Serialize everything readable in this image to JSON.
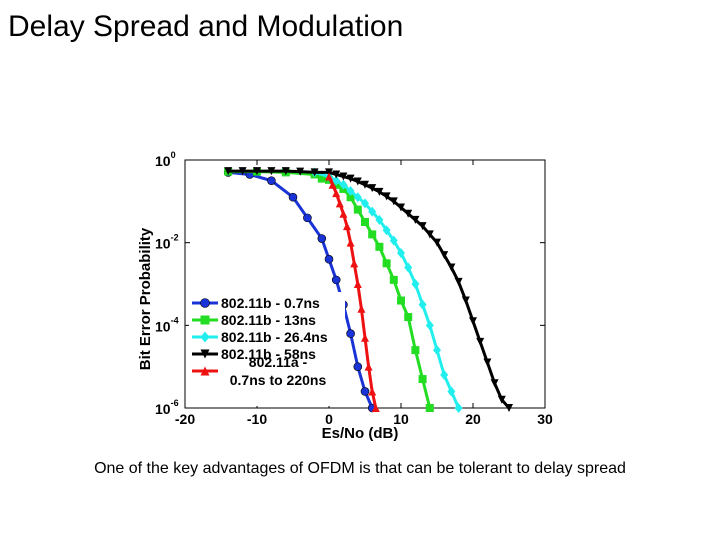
{
  "slide": {
    "title": "Delay Spread and Modulation",
    "caption": "One of the key advantages of OFDM is that can be tolerant to delay spread"
  },
  "chart_data": {
    "type": "line",
    "xlabel": "Es/No (dB)",
    "ylabel": "Bit Error Probability",
    "xlim": [
      -20,
      30
    ],
    "ylim_log10": [
      -6,
      0
    ],
    "y_scale": "log",
    "x_ticks": [
      {
        "value": -20,
        "label": "-20"
      },
      {
        "value": -10,
        "label": "-10"
      },
      {
        "value": 0,
        "label": "0"
      },
      {
        "value": 10,
        "label": "10"
      },
      {
        "value": 20,
        "label": "20"
      },
      {
        "value": 30,
        "label": "30"
      }
    ],
    "y_ticks": [
      {
        "exp": 0,
        "base": "10",
        "sup": "0"
      },
      {
        "exp": -2,
        "base": "10",
        "sup": "-2"
      },
      {
        "exp": -4,
        "base": "10",
        "sup": "-4"
      },
      {
        "exp": -6,
        "base": "10",
        "sup": "-6"
      }
    ],
    "legend_position": "bottom-left",
    "series": [
      {
        "name": "802.11b - 0.7ns",
        "legend_lines": [
          "802.11b - 0.7ns"
        ],
        "color": "#1a33d6",
        "marker": "circle",
        "x": [
          -14,
          -11,
          -8,
          -5,
          -3,
          -1,
          0,
          1,
          2,
          3,
          4,
          5,
          6
        ],
        "log10_y": [
          -0.3,
          -0.35,
          -0.5,
          -0.9,
          -1.4,
          -1.9,
          -2.4,
          -2.9,
          -3.5,
          -4.2,
          -5.0,
          -5.6,
          -6.0
        ]
      },
      {
        "name": "802.11b - 13ns",
        "legend_lines": [
          "802.11b - 13ns"
        ],
        "color": "#22dd22",
        "marker": "square",
        "x": [
          -14,
          -10,
          -6,
          -2,
          -1,
          0,
          1,
          2,
          3,
          4,
          5,
          6,
          7,
          8,
          9,
          10,
          11,
          12,
          13,
          14
        ],
        "log10_y": [
          -0.28,
          -0.28,
          -0.3,
          -0.35,
          -0.45,
          -0.48,
          -0.6,
          -0.7,
          -0.9,
          -1.2,
          -1.5,
          -1.8,
          -2.1,
          -2.5,
          -2.9,
          -3.4,
          -3.8,
          -4.6,
          -5.3,
          -6.0
        ]
      },
      {
        "name": "802.11b - 26.4ns",
        "legend_lines": [
          "802.11b - 26.4ns"
        ],
        "color": "#22eeee",
        "marker": "diamond",
        "x": [
          -2,
          0,
          1,
          2,
          3,
          4,
          5,
          6,
          7,
          8,
          9,
          10,
          11,
          12,
          13,
          14,
          15,
          16,
          17,
          18
        ],
        "log10_y": [
          -0.3,
          -0.4,
          -0.5,
          -0.6,
          -0.75,
          -0.9,
          -1.05,
          -1.25,
          -1.45,
          -1.7,
          -1.95,
          -2.25,
          -2.6,
          -3.0,
          -3.5,
          -4.0,
          -4.6,
          -5.2,
          -5.6,
          -6.0
        ]
      },
      {
        "name": "802.11b - 58ns",
        "legend_lines": [
          "802.11b - 58ns"
        ],
        "color": "#000000",
        "marker": "triangle-down",
        "x": [
          -14,
          -12,
          -10,
          -8,
          -6,
          -4,
          -2,
          0,
          1,
          2,
          3,
          4,
          5,
          6,
          7,
          8,
          9,
          10,
          11,
          12,
          13,
          14,
          15,
          16,
          17,
          18,
          19,
          20,
          21,
          22,
          23,
          24,
          25
        ],
        "log10_y": [
          -0.27,
          -0.27,
          -0.27,
          -0.27,
          -0.27,
          -0.28,
          -0.3,
          -0.3,
          -0.35,
          -0.4,
          -0.45,
          -0.52,
          -0.6,
          -0.68,
          -0.77,
          -0.88,
          -1.0,
          -1.15,
          -1.3,
          -1.45,
          -1.6,
          -1.8,
          -2.0,
          -2.3,
          -2.6,
          -2.95,
          -3.4,
          -3.9,
          -4.4,
          -4.9,
          -5.4,
          -5.8,
          -6.0
        ]
      },
      {
        "name": "802.11a - 0.7ns to 220ns",
        "legend_lines": [
          "802.11a -",
          "0.7ns to 220ns"
        ],
        "color": "#ee1111",
        "marker": "triangle-up",
        "x": [
          0,
          0.5,
          1,
          1.5,
          2,
          2.5,
          3,
          3.5,
          4,
          4.5,
          5,
          5.5,
          6,
          6.5
        ],
        "log10_y": [
          -0.4,
          -0.6,
          -0.8,
          -1.05,
          -1.3,
          -1.6,
          -2.0,
          -2.5,
          -3.0,
          -3.6,
          -4.3,
          -5.0,
          -5.6,
          -6.0
        ]
      }
    ]
  }
}
